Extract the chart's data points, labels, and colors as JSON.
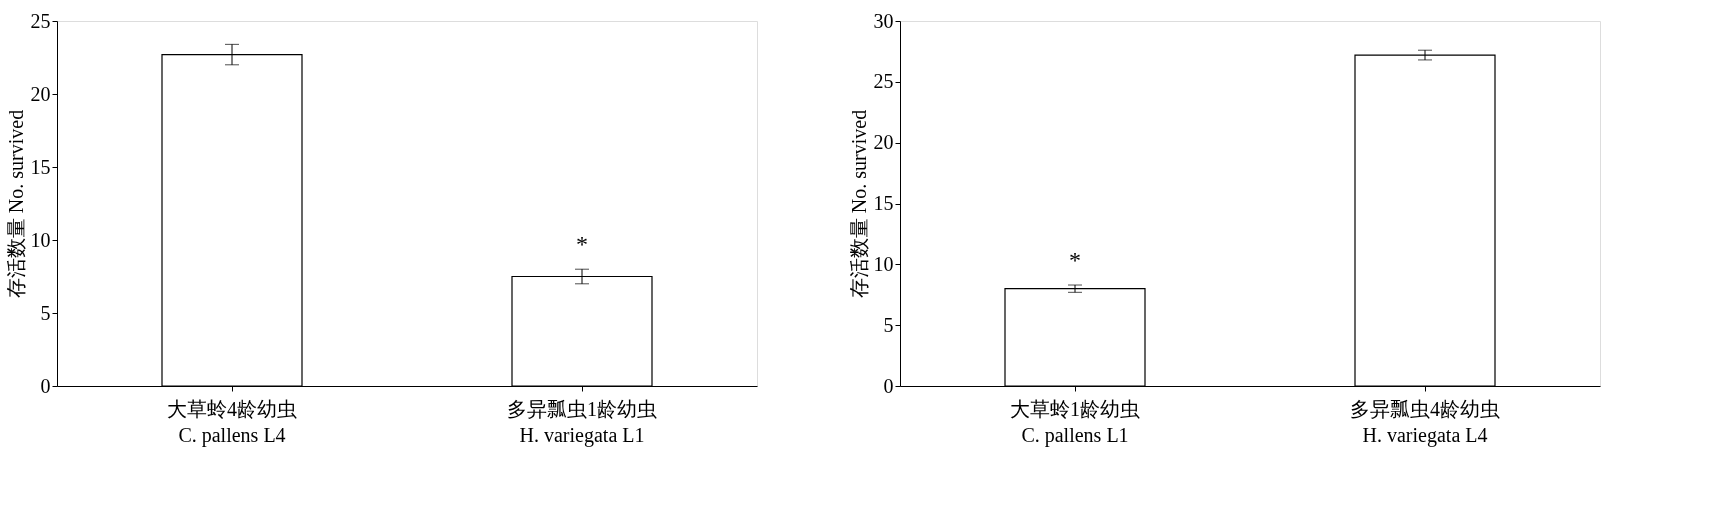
{
  "chart_data": [
    {
      "type": "bar",
      "ylabel": "存活数量 No. survived",
      "categories": [
        "大草蛉4龄幼虫\nC. pallens L4",
        "多异瓢虫1龄幼虫\nH. variegata L1"
      ],
      "values": [
        22.7,
        7.5
      ],
      "errors": [
        0.7,
        0.5
      ],
      "value_labels": [
        null,
        "*"
      ],
      "color": "#ffffff",
      "ylim": [
        0,
        25
      ],
      "yticks": [
        0,
        5,
        10,
        15,
        20,
        25
      ],
      "grid": false
    },
    {
      "type": "bar",
      "ylabel": "存活数量 No. survived",
      "categories": [
        "大草蛉1龄幼虫\nC. pallens L1",
        "多异瓢虫4龄幼虫\nH. variegata L4"
      ],
      "values": [
        8.0,
        27.2
      ],
      "errors": [
        0.3,
        0.4
      ],
      "value_labels": [
        "*",
        null
      ],
      "color": "#ffffff",
      "ylim": [
        0,
        30
      ],
      "yticks": [
        0,
        5,
        10,
        15,
        20,
        25,
        30
      ],
      "grid": false
    }
  ]
}
